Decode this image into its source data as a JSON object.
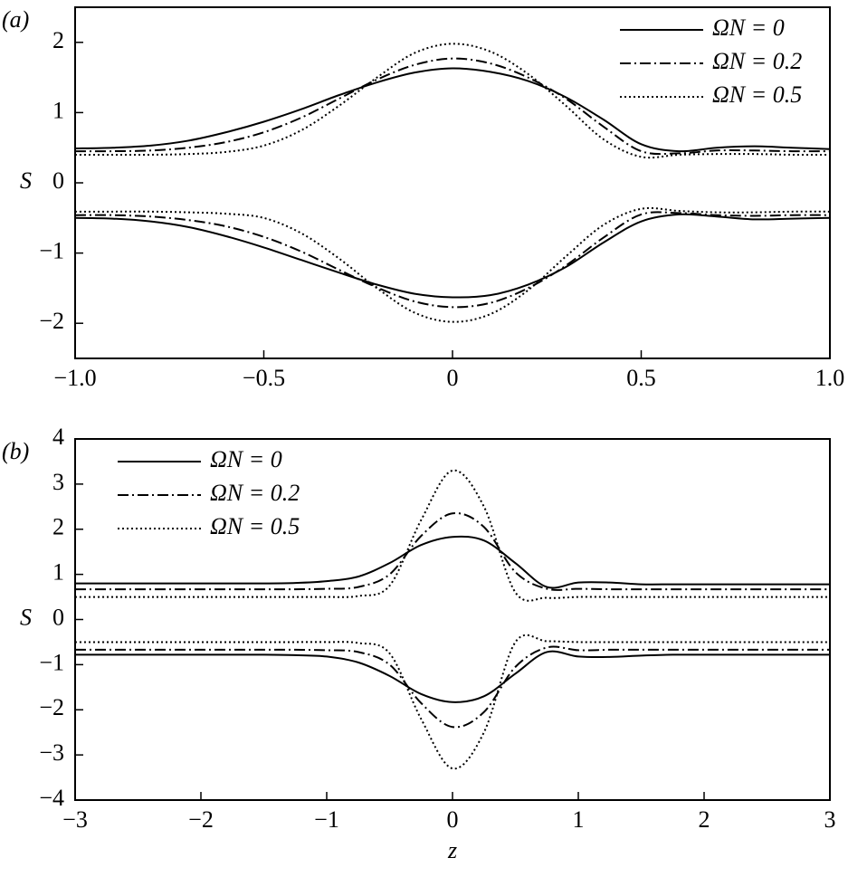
{
  "chart_data": [
    {
      "type": "line",
      "panel_label": "(a)",
      "y_label": "S",
      "x": [
        -1.0,
        -0.9,
        -0.8,
        -0.7,
        -0.6,
        -0.5,
        -0.4,
        -0.3,
        -0.2,
        -0.1,
        0,
        0.1,
        0.2,
        0.3,
        0.4,
        0.5,
        0.6,
        0.7,
        0.8,
        0.9,
        1.0
      ],
      "series": [
        {
          "name": "ΩN = 0",
          "color": "#000000",
          "dash": "solid",
          "values": [
            0.49,
            0.5,
            0.53,
            0.6,
            0.72,
            0.87,
            1.05,
            1.25,
            1.43,
            1.57,
            1.63,
            1.58,
            1.45,
            1.22,
            0.9,
            0.55,
            0.45,
            0.5,
            0.52,
            0.5,
            0.48
          ],
          "lower_values": [
            -0.5,
            -0.51,
            -0.55,
            -0.63,
            -0.76,
            -0.92,
            -1.1,
            -1.28,
            -1.45,
            -1.58,
            -1.63,
            -1.6,
            -1.45,
            -1.2,
            -0.85,
            -0.55,
            -0.45,
            -0.48,
            -0.52,
            -0.51,
            -0.5
          ]
        },
        {
          "name": "ΩN = 0.2",
          "color": "#000000",
          "dash": "dashdot",
          "values": [
            0.45,
            0.45,
            0.46,
            0.5,
            0.58,
            0.72,
            0.93,
            1.2,
            1.47,
            1.68,
            1.77,
            1.7,
            1.5,
            1.2,
            0.8,
            0.45,
            0.42,
            0.46,
            0.46,
            0.45,
            0.45
          ],
          "lower_values": [
            -0.46,
            -0.46,
            -0.48,
            -0.53,
            -0.62,
            -0.77,
            -0.98,
            -1.24,
            -1.49,
            -1.69,
            -1.77,
            -1.71,
            -1.5,
            -1.18,
            -0.78,
            -0.45,
            -0.43,
            -0.46,
            -0.47,
            -0.46,
            -0.46
          ]
        },
        {
          "name": "ΩN = 0.5",
          "color": "#000000",
          "dash": "dotted",
          "values": [
            0.4,
            0.4,
            0.4,
            0.41,
            0.44,
            0.53,
            0.75,
            1.1,
            1.5,
            1.85,
            1.98,
            1.87,
            1.55,
            1.1,
            0.62,
            0.37,
            0.4,
            0.41,
            0.41,
            0.4,
            0.4
          ],
          "lower_values": [
            -0.41,
            -0.41,
            -0.41,
            -0.42,
            -0.44,
            -0.5,
            -0.72,
            -1.08,
            -1.5,
            -1.85,
            -1.98,
            -1.87,
            -1.53,
            -1.05,
            -0.6,
            -0.37,
            -0.4,
            -0.42,
            -0.42,
            -0.41,
            -0.41
          ]
        }
      ],
      "xlim": [
        -1.0,
        1.0
      ],
      "xticks": [
        {
          "value": -1.0,
          "label": "−1.0"
        },
        {
          "value": -0.5,
          "label": "−0.5"
        },
        0,
        0.5,
        {
          "value": 1.0,
          "label": "1.0"
        }
      ],
      "ylim": [
        -2.5,
        2.5
      ],
      "yticks": [
        {
          "value": -2,
          "label": "−2"
        },
        {
          "value": -1,
          "label": "−1"
        },
        0,
        1,
        2
      ],
      "legend": "upper right"
    },
    {
      "type": "line",
      "panel_label": "(b)",
      "y_label": "S",
      "x_label": "z",
      "x": [
        -3,
        -2.75,
        -2.5,
        -2.25,
        -2,
        -1.75,
        -1.5,
        -1.25,
        -1,
        -0.75,
        -0.5,
        -0.25,
        0,
        0.25,
        0.5,
        0.75,
        1,
        1.25,
        1.5,
        1.75,
        2,
        2.25,
        2.5,
        2.75,
        3
      ],
      "series": [
        {
          "name": "ΩN = 0",
          "color": "#000000",
          "dash": "solid",
          "values": [
            0.8,
            0.8,
            0.8,
            0.8,
            0.8,
            0.8,
            0.8,
            0.81,
            0.85,
            0.95,
            1.25,
            1.65,
            1.83,
            1.75,
            1.25,
            0.72,
            0.82,
            0.82,
            0.78,
            0.78,
            0.78,
            0.78,
            0.78,
            0.78,
            0.78
          ],
          "lower_values": [
            -0.78,
            -0.78,
            -0.78,
            -0.78,
            -0.78,
            -0.78,
            -0.78,
            -0.79,
            -0.82,
            -0.95,
            -1.25,
            -1.65,
            -1.83,
            -1.7,
            -1.2,
            -0.72,
            -0.82,
            -0.83,
            -0.8,
            -0.78,
            -0.78,
            -0.78,
            -0.78,
            -0.78,
            -0.78
          ]
        },
        {
          "name": "ΩN = 0.2",
          "color": "#000000",
          "dash": "dashdot",
          "values": [
            0.67,
            0.67,
            0.67,
            0.67,
            0.67,
            0.67,
            0.67,
            0.67,
            0.68,
            0.72,
            1.0,
            1.85,
            2.35,
            2.05,
            1.05,
            0.68,
            0.68,
            0.67,
            0.67,
            0.67,
            0.67,
            0.67,
            0.67,
            0.67,
            0.67
          ],
          "lower_values": [
            -0.67,
            -0.67,
            -0.67,
            -0.67,
            -0.67,
            -0.67,
            -0.67,
            -0.67,
            -0.68,
            -0.72,
            -1.0,
            -1.85,
            -2.38,
            -2.05,
            -1.05,
            -0.62,
            -0.68,
            -0.67,
            -0.67,
            -0.67,
            -0.67,
            -0.67,
            -0.67,
            -0.67,
            -0.67
          ]
        },
        {
          "name": "ΩN = 0.5",
          "color": "#000000",
          "dash": "dotted",
          "values": [
            0.5,
            0.5,
            0.5,
            0.5,
            0.5,
            0.5,
            0.5,
            0.5,
            0.5,
            0.52,
            0.75,
            2.2,
            3.3,
            2.5,
            0.6,
            0.48,
            0.5,
            0.5,
            0.5,
            0.5,
            0.5,
            0.5,
            0.5,
            0.5,
            0.5
          ],
          "lower_values": [
            -0.5,
            -0.5,
            -0.5,
            -0.5,
            -0.5,
            -0.5,
            -0.5,
            -0.5,
            -0.5,
            -0.52,
            -0.75,
            -2.2,
            -3.3,
            -2.5,
            -0.5,
            -0.48,
            -0.5,
            -0.5,
            -0.5,
            -0.5,
            -0.5,
            -0.5,
            -0.5,
            -0.5,
            -0.5
          ]
        }
      ],
      "xlim": [
        -3,
        3
      ],
      "xticks": [
        {
          "value": -3,
          "label": "−3"
        },
        {
          "value": -2,
          "label": "−2"
        },
        {
          "value": -1,
          "label": "−1"
        },
        0,
        1,
        2,
        3
      ],
      "ylim": [
        -4,
        4
      ],
      "yticks": [
        {
          "value": -4,
          "label": "−4"
        },
        {
          "value": -3,
          "label": "−3"
        },
        {
          "value": -2,
          "label": "−2"
        },
        {
          "value": -1,
          "label": "−1"
        },
        0,
        1,
        2,
        3,
        4
      ],
      "legend": "upper left"
    }
  ]
}
